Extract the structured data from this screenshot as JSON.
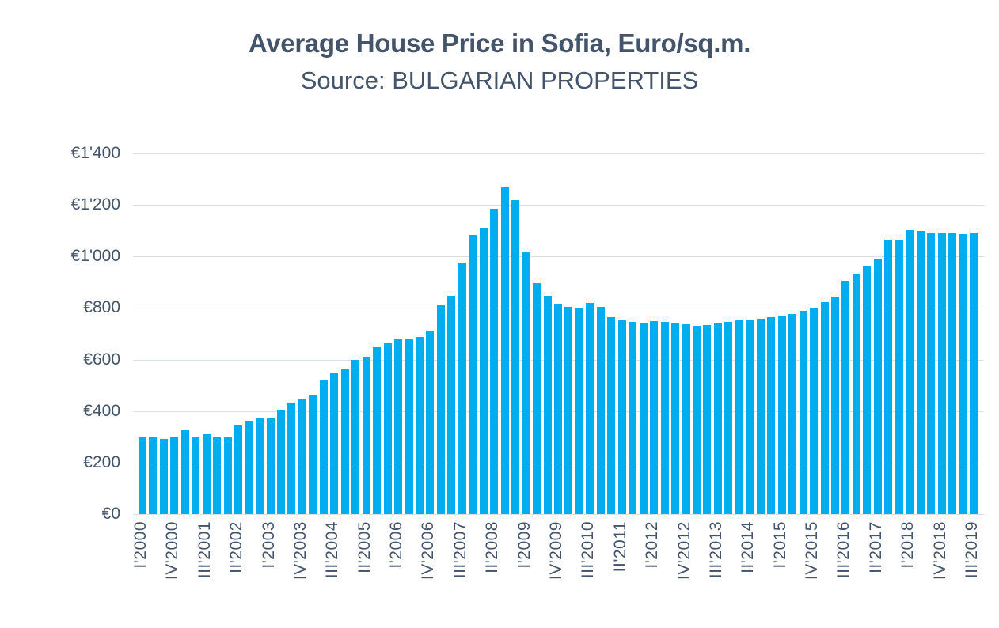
{
  "header": {
    "title": "Average House Price in Sofia, Euro/sq.m.",
    "subtitle": "Source: BULGARIAN PROPERTIES"
  },
  "chart_data": {
    "type": "bar",
    "title": "Average House Price in Sofia, Euro/sq.m.",
    "subtitle": "Source: BULGARIAN PROPERTIES",
    "xlabel": "",
    "ylabel": "",
    "ylim": [
      0,
      1400
    ],
    "y_tick_step": 200,
    "y_ticks": [
      "€0",
      "€200",
      "€400",
      "€600",
      "€800",
      "€1'000",
      "€1'200",
      "€1'400"
    ],
    "grid": true,
    "legend": false,
    "bar_color": "#00AEEF",
    "gridline_color": "#DCE1E8",
    "text_color": "#44546A",
    "background": "#FFFFFF",
    "x_label_every": 3,
    "x_tick_labels": [
      "I'2000",
      "IV'2000",
      "III'2001",
      "II'2002",
      "I'2003",
      "IV'2003",
      "III'2004",
      "II'2005",
      "I'2006",
      "IV'2006",
      "III'2007",
      "II'2008",
      "I'2009",
      "IV'2009",
      "III'2010",
      "II'2011",
      "I'2012",
      "IV'2012",
      "III'2013",
      "II'2014",
      "I'2015",
      "IV'2015",
      "III'2016",
      "II'2017",
      "I'2018",
      "IV'2018",
      "III'2019"
    ],
    "categories": [
      "I'2000",
      "II'2000",
      "III'2000",
      "IV'2000",
      "I'2001",
      "II'2001",
      "III'2001",
      "IV'2001",
      "I'2002",
      "II'2002",
      "III'2002",
      "IV'2002",
      "I'2003",
      "II'2003",
      "III'2003",
      "IV'2003",
      "I'2004",
      "II'2004",
      "III'2004",
      "IV'2004",
      "I'2005",
      "II'2005",
      "III'2005",
      "IV'2005",
      "I'2006",
      "II'2006",
      "III'2006",
      "IV'2006",
      "I'2007",
      "II'2007",
      "III'2007",
      "IV'2007",
      "I'2008",
      "II'2008",
      "III'2008",
      "IV'2008",
      "I'2009",
      "II'2009",
      "III'2009",
      "IV'2009",
      "I'2010",
      "II'2010",
      "III'2010",
      "IV'2010",
      "I'2011",
      "II'2011",
      "III'2011",
      "IV'2011",
      "I'2012",
      "II'2012",
      "III'2012",
      "IV'2012",
      "I'2013",
      "II'2013",
      "III'2013",
      "IV'2013",
      "I'2014",
      "II'2014",
      "III'2014",
      "IV'2014",
      "I'2015",
      "II'2015",
      "III'2015",
      "IV'2015",
      "I'2016",
      "II'2016",
      "III'2016",
      "IV'2016",
      "I'2017",
      "II'2017",
      "III'2017",
      "IV'2017",
      "I'2018",
      "II'2018",
      "III'2018",
      "IV'2018",
      "I'2019",
      "II'2019",
      "III'2019"
    ],
    "values": [
      297,
      297,
      293,
      301,
      325,
      299,
      310,
      297,
      299,
      346,
      363,
      370,
      373,
      403,
      433,
      447,
      462,
      518,
      546,
      562,
      598,
      610,
      649,
      662,
      678,
      680,
      688,
      713,
      815,
      848,
      976,
      1085,
      1110,
      1185,
      1267,
      1219,
      1016,
      897,
      846,
      818,
      805,
      797,
      820,
      804,
      765,
      752,
      747,
      744,
      750,
      746,
      742,
      737,
      730,
      735,
      741,
      747,
      751,
      754,
      759,
      765,
      771,
      777,
      788,
      800,
      822,
      843,
      906,
      934,
      964,
      993,
      1064,
      1066,
      1102,
      1098,
      1091,
      1094,
      1089,
      1086,
      1094
    ]
  }
}
